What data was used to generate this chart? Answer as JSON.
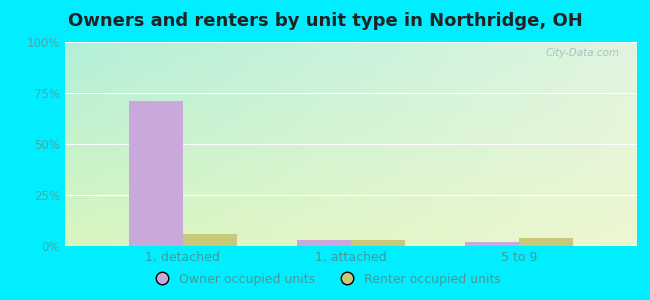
{
  "title": "Owners and renters by unit type in Northridge, OH",
  "categories": [
    "1, detached",
    "1, attached",
    "5 to 9"
  ],
  "owner_values": [
    71,
    3,
    2
  ],
  "renter_values": [
    6,
    3,
    4
  ],
  "owner_color": "#c9a8dc",
  "renter_color": "#c8c87a",
  "ylim": [
    0,
    100
  ],
  "yticks": [
    0,
    25,
    50,
    75,
    100
  ],
  "ytick_labels": [
    "0%",
    "25%",
    "50%",
    "75%",
    "100%"
  ],
  "bg_color_topleft": "#b2f0d8",
  "bg_color_topright": "#e8f5e8",
  "bg_color_bottom": "#ddf5d0",
  "outer_bg": "#00eeff",
  "title_fontsize": 13,
  "bar_width": 0.32,
  "legend_owner": "Owner occupied units",
  "legend_renter": "Renter occupied units",
  "watermark": "City-Data.com",
  "grid_color": "#ffffff",
  "tick_color": "#44aaaa",
  "label_color": "#449999"
}
